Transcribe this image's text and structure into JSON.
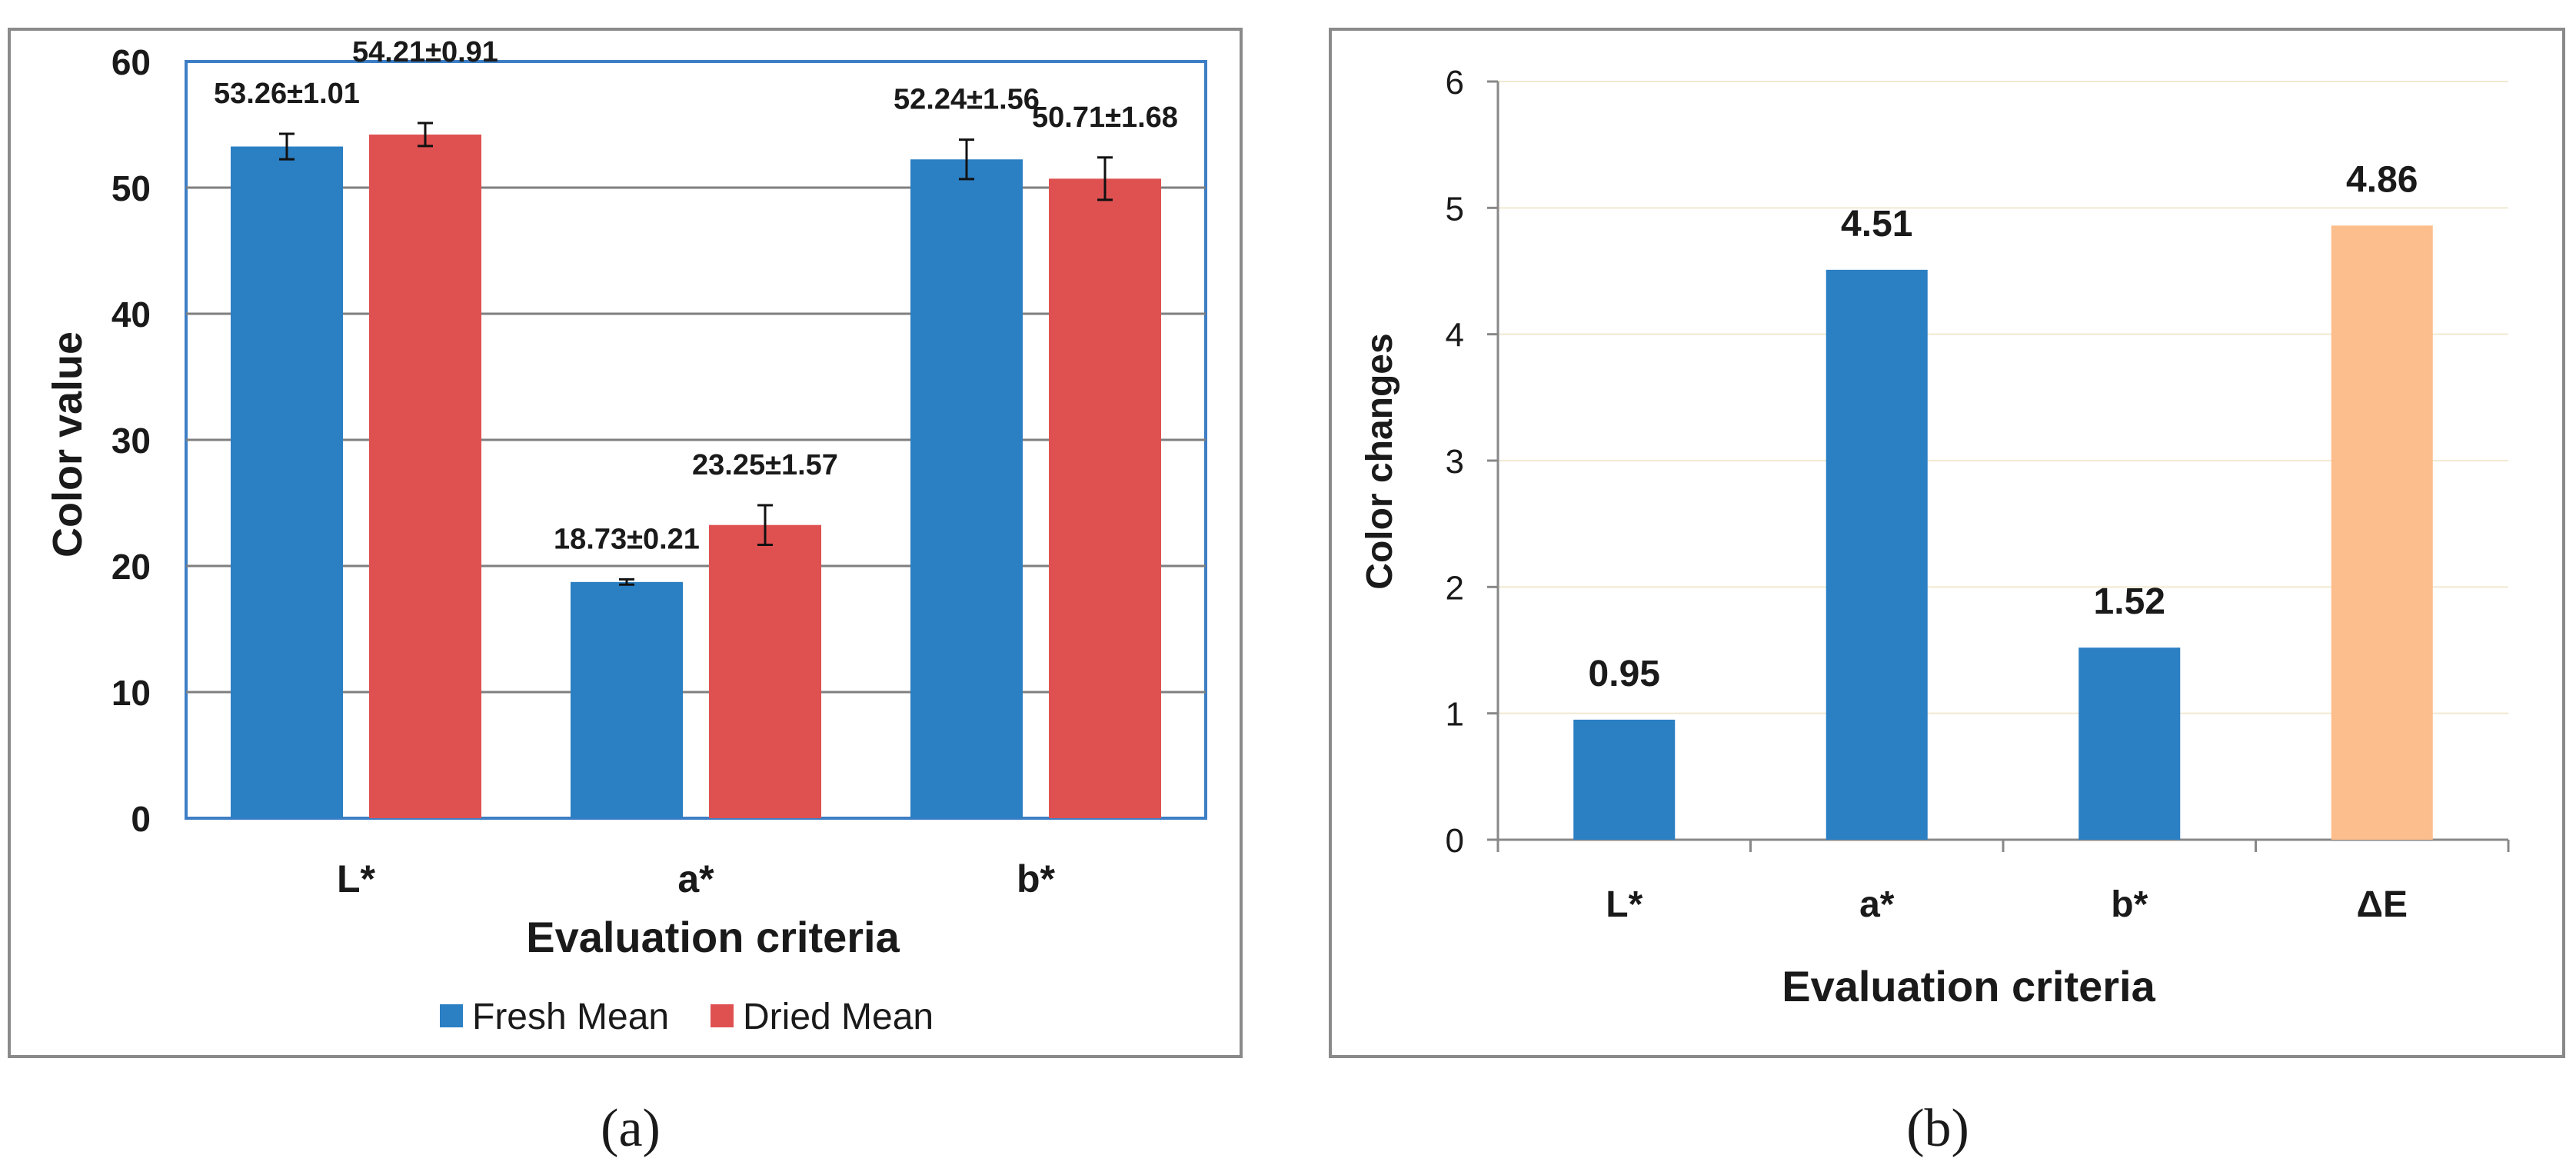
{
  "colors": {
    "fresh": "#2b7fc3",
    "dried": "#df5151",
    "change": "#2b7fc3",
    "deltaE": "#fcbe8c",
    "axis": "#888888",
    "gridA": "#7f7f7f",
    "gridB": "#f0e9d0",
    "frameA": "#3d7ec5",
    "panelBorder": "#8a8a8a",
    "text": "#1a1a1a"
  },
  "chart_data": [
    {
      "type": "bar",
      "panel_label": "(a)",
      "ylabel": "Color value",
      "xlabel": "Evaluation criteria",
      "ylim": [
        0,
        60
      ],
      "yticks": [
        "0",
        "10",
        "20",
        "30",
        "40",
        "50",
        "60"
      ],
      "grid": true,
      "legend_position": "bottom",
      "categories": [
        "L*",
        "a*",
        "b*"
      ],
      "series": [
        {
          "name": "Fresh Mean",
          "values": [
            53.26,
            18.73,
            52.24
          ],
          "errors": [
            1.01,
            0.21,
            1.56
          ],
          "labels": [
            "53.26±1.01",
            "18.73±0.21",
            "52.24±1.56"
          ]
        },
        {
          "name": "Dried Mean",
          "values": [
            54.21,
            23.25,
            50.71
          ],
          "errors": [
            0.91,
            1.57,
            1.68
          ],
          "labels": [
            "54.21±0.91",
            "23.25±1.57",
            "50.71±1.68"
          ]
        }
      ]
    },
    {
      "type": "bar",
      "panel_label": "(b)",
      "ylabel": "Color changes",
      "xlabel": "Evaluation criteria",
      "ylim": [
        0,
        6
      ],
      "yticks": [
        "0",
        "1",
        "2",
        "3",
        "4",
        "5",
        "6"
      ],
      "grid": true,
      "categories": [
        "L*",
        "a*",
        "b*",
        "ΔE"
      ],
      "values": [
        0.95,
        4.51,
        1.52,
        4.86
      ],
      "labels": [
        "0.95",
        "4.51",
        "1.52",
        "4.86"
      ]
    }
  ]
}
